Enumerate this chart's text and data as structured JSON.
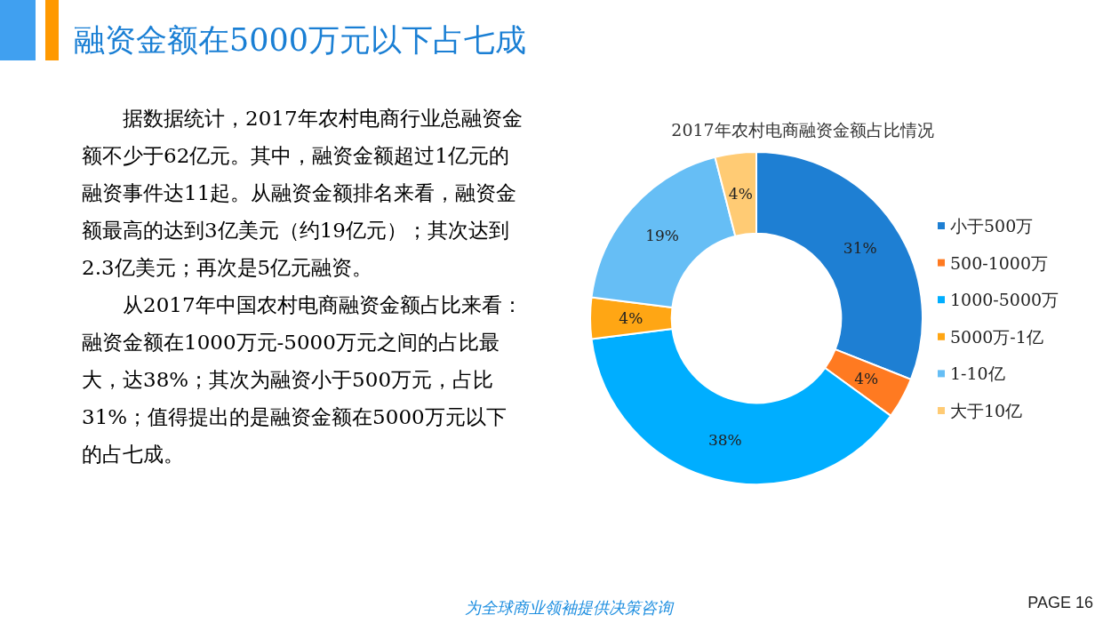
{
  "chart_data": {
    "type": "donut",
    "title": "融资金额在5000万元以下占七成",
    "subtitle": "2017年农村电商融资金额占比情况",
    "categories": [
      "小于500万",
      "500-1000万",
      "1000-5000万",
      "5000万-1亿",
      "1-10亿",
      "大于10亿"
    ],
    "values": [
      31,
      4,
      38,
      4,
      19,
      4
    ],
    "colors": [
      "#1e7fd3",
      "#ff7a21",
      "#00aeff",
      "#ffa614",
      "#66bef5",
      "#ffcb74"
    ],
    "value_labels": [
      "31%",
      "4%",
      "38%",
      "4%",
      "19%",
      "4%"
    ],
    "legend": "right",
    "annotations": [
      "据数据统计，2017年农村电商行业总融资金额不少于62亿元。其中，融资金额超过1亿元的融资事件达11起。从融资金额排名来看，融资金额最高的达到3亿美元（约19亿元）；其次达到2.3亿美元；再次是5亿元融资。",
      "从2017年中国农村电商融资金额占比来看：融资金额在1000万元-5000万元之间的占比最大，达38%；其次为融资小于500万元，占比31%；值得提出的是融资金额在5000万元以下的占七成。",
      "为全球商业领袖提供决策咨询",
      "PAGE 16"
    ]
  }
}
